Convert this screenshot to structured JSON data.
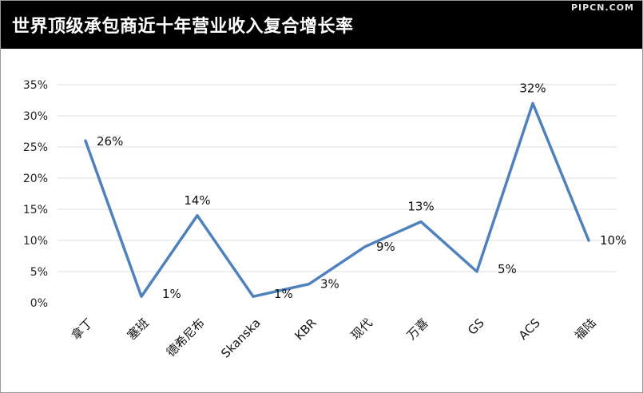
{
  "header": {
    "title": "世界顶级承包商近十年营业收入复合增长率",
    "watermark": "PIPCN.COM"
  },
  "chart_data": {
    "type": "line",
    "title": "世界顶级承包商近十年营业收入复合增长率",
    "categories": [
      "拿丁",
      "塞班",
      "德希尼布",
      "Skanska",
      "KBR",
      "现代",
      "万喜",
      "GS",
      "ACS",
      "福陆"
    ],
    "values": [
      26,
      1,
      14,
      1,
      3,
      9,
      13,
      5,
      32,
      10
    ],
    "data_labels": [
      "26%",
      "1%",
      "14%",
      "1%",
      "3%",
      "9%",
      "13%",
      "5%",
      "32%",
      "10%"
    ],
    "yticks": [
      0,
      5,
      10,
      15,
      20,
      25,
      30,
      35
    ],
    "ytick_labels": [
      "0%",
      "5%",
      "10%",
      "15%",
      "20%",
      "25%",
      "30%",
      "35%"
    ],
    "ylim": [
      0,
      35
    ],
    "xlabel": "",
    "ylabel": "",
    "grid": true,
    "legend": "none",
    "line_color": "#4f81bd"
  }
}
